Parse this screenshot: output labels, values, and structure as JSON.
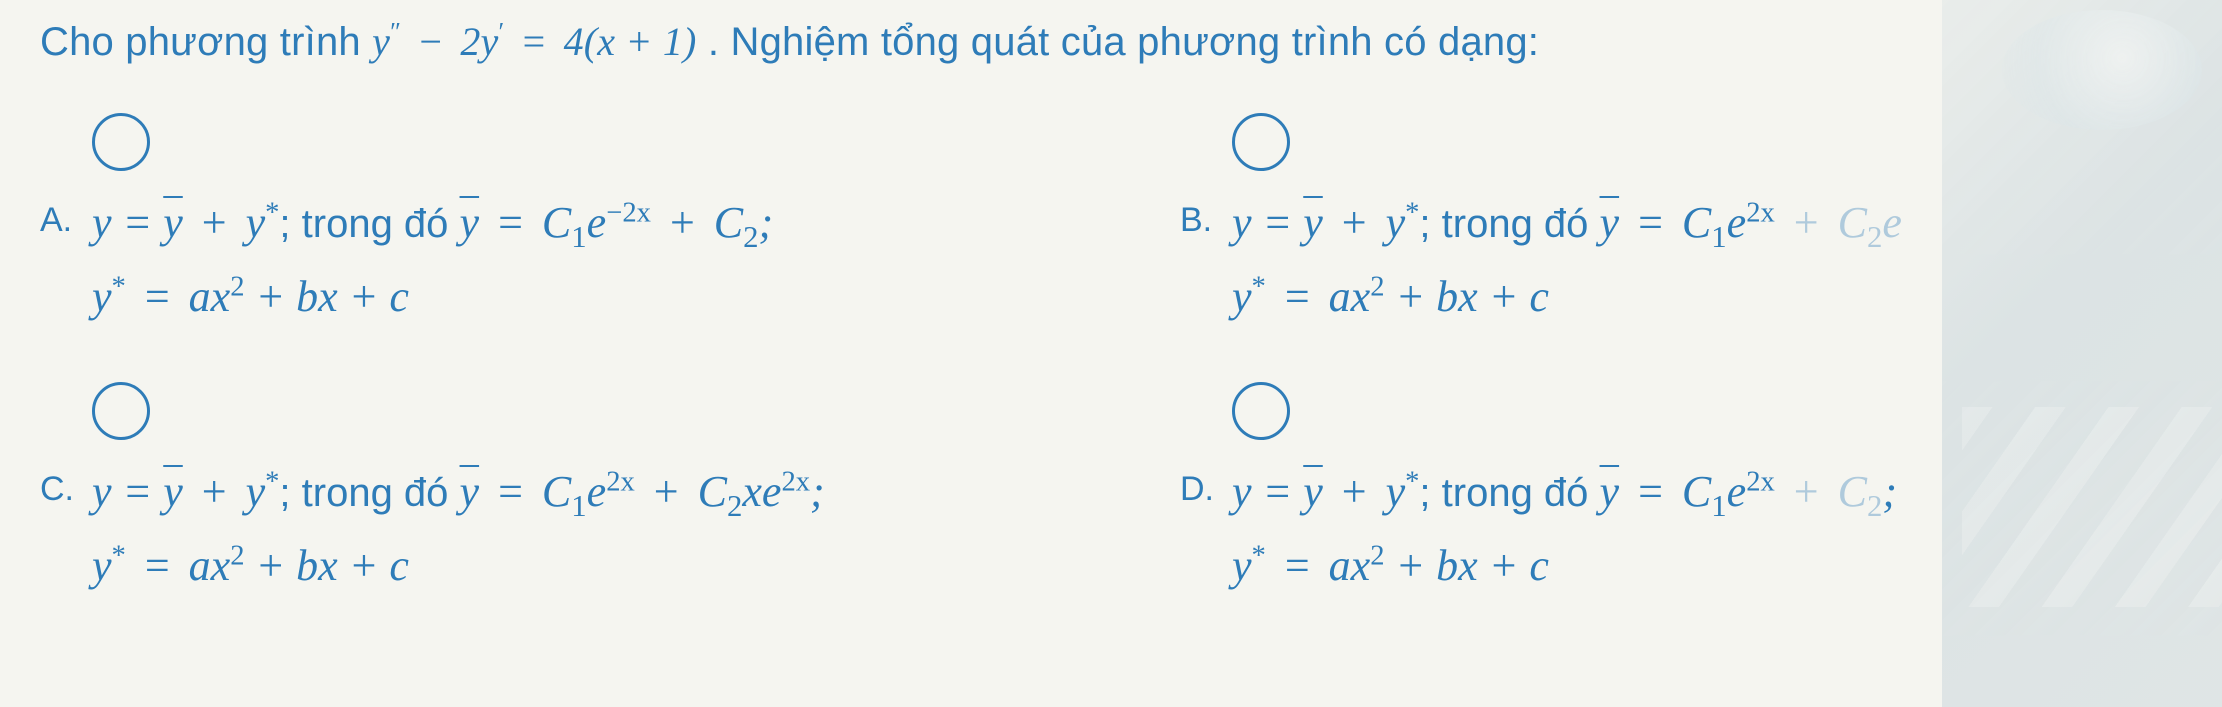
{
  "colors": {
    "text": "#2e7cb8",
    "background": "#f5f5f0",
    "radio_border": "#2e7cb8"
  },
  "fontsize": {
    "prompt": 40,
    "letter": 34,
    "math": 44
  },
  "prompt": {
    "lead": "Cho phương trình ",
    "eq_lhs_y": "y",
    "eq_lhs_pp": "″",
    "eq_minus": " − ",
    "eq_2": "2",
    "eq_yp_y": "y",
    "eq_yp_p": "′",
    "eq_eqs": " = ",
    "eq_rhs": "4(x + 1)",
    "tail": " . Nghiệm tổng quát của phương trình có dạng:"
  },
  "options": {
    "A": {
      "letter": "A.",
      "line1_pre": "y = ",
      "line1_ybar": "y",
      "line1_plus": " + ",
      "line1_ystar_y": "y",
      "line1_ystar_s": "*",
      "line1_trong": "; trong đó ",
      "line1_ybar2": "y",
      "line1_eq": " = ",
      "line1_C1": "C",
      "line1_C1sub": "1",
      "line1_e": "e",
      "line1_exp": "−2x",
      "line1_plus2": " + ",
      "line1_C2": "C",
      "line1_C2sub": "2",
      "line1_end": ";",
      "line2_ys": "y",
      "line2_star": "*",
      "line2_eq": " = ",
      "line2_ax": "ax",
      "line2_sq": "2",
      "line2_rest": " + bx + c"
    },
    "B": {
      "letter": "B.",
      "line1_pre": "y = ",
      "line1_ybar": "y",
      "line1_plus": " + ",
      "line1_ystar_y": "y",
      "line1_ystar_s": "*",
      "line1_trong": "; trong đó ",
      "line1_ybar2": "y",
      "line1_eq": " = ",
      "line1_C1": "C",
      "line1_C1sub": "1",
      "line1_e": "e",
      "line1_exp": "2x",
      "line1_plus2": " + ",
      "line1_C2": "C",
      "line1_C2sub": "2",
      "line1_e2": "e",
      "line2_ys": "y",
      "line2_star": "*",
      "line2_eq": " = ",
      "line2_ax": "ax",
      "line2_sq": "2",
      "line2_rest": " + bx + c"
    },
    "C": {
      "letter": "C.",
      "line1_pre": "y = ",
      "line1_ybar": "y",
      "line1_plus": " + ",
      "line1_ystar_y": "y",
      "line1_ystar_s": "*",
      "line1_trong": "; trong đó ",
      "line1_ybar2": "y",
      "line1_eq": " = ",
      "line1_C1": "C",
      "line1_C1sub": "1",
      "line1_e": "e",
      "line1_exp": "2x",
      "line1_plus2": " + ",
      "line1_C2": "C",
      "line1_C2sub": "2",
      "line1_x": "x",
      "line1_e2": "e",
      "line1_exp2": "2x",
      "line1_end": ";",
      "line2_ys": "y",
      "line2_star": "*",
      "line2_eq": " = ",
      "line2_ax": "ax",
      "line2_sq": "2",
      "line2_rest": " + bx + c"
    },
    "D": {
      "letter": "D.",
      "line1_pre": "y = ",
      "line1_ybar": "y",
      "line1_plus": " + ",
      "line1_ystar_y": "y",
      "line1_ystar_s": "*",
      "line1_trong": "; trong đó ",
      "line1_ybar2": "y",
      "line1_eq": " = ",
      "line1_C1": "C",
      "line1_C1sub": "1",
      "line1_e": "e",
      "line1_exp": "2x",
      "line1_plus2": " + ",
      "line1_C2": "C",
      "line1_C2sub": "2",
      "line1_end": ";",
      "line2_ys": "y",
      "line2_star": "*",
      "line2_eq": " = ",
      "line2_ax": "ax",
      "line2_sq": "2",
      "line2_rest": " + bx + c"
    }
  }
}
